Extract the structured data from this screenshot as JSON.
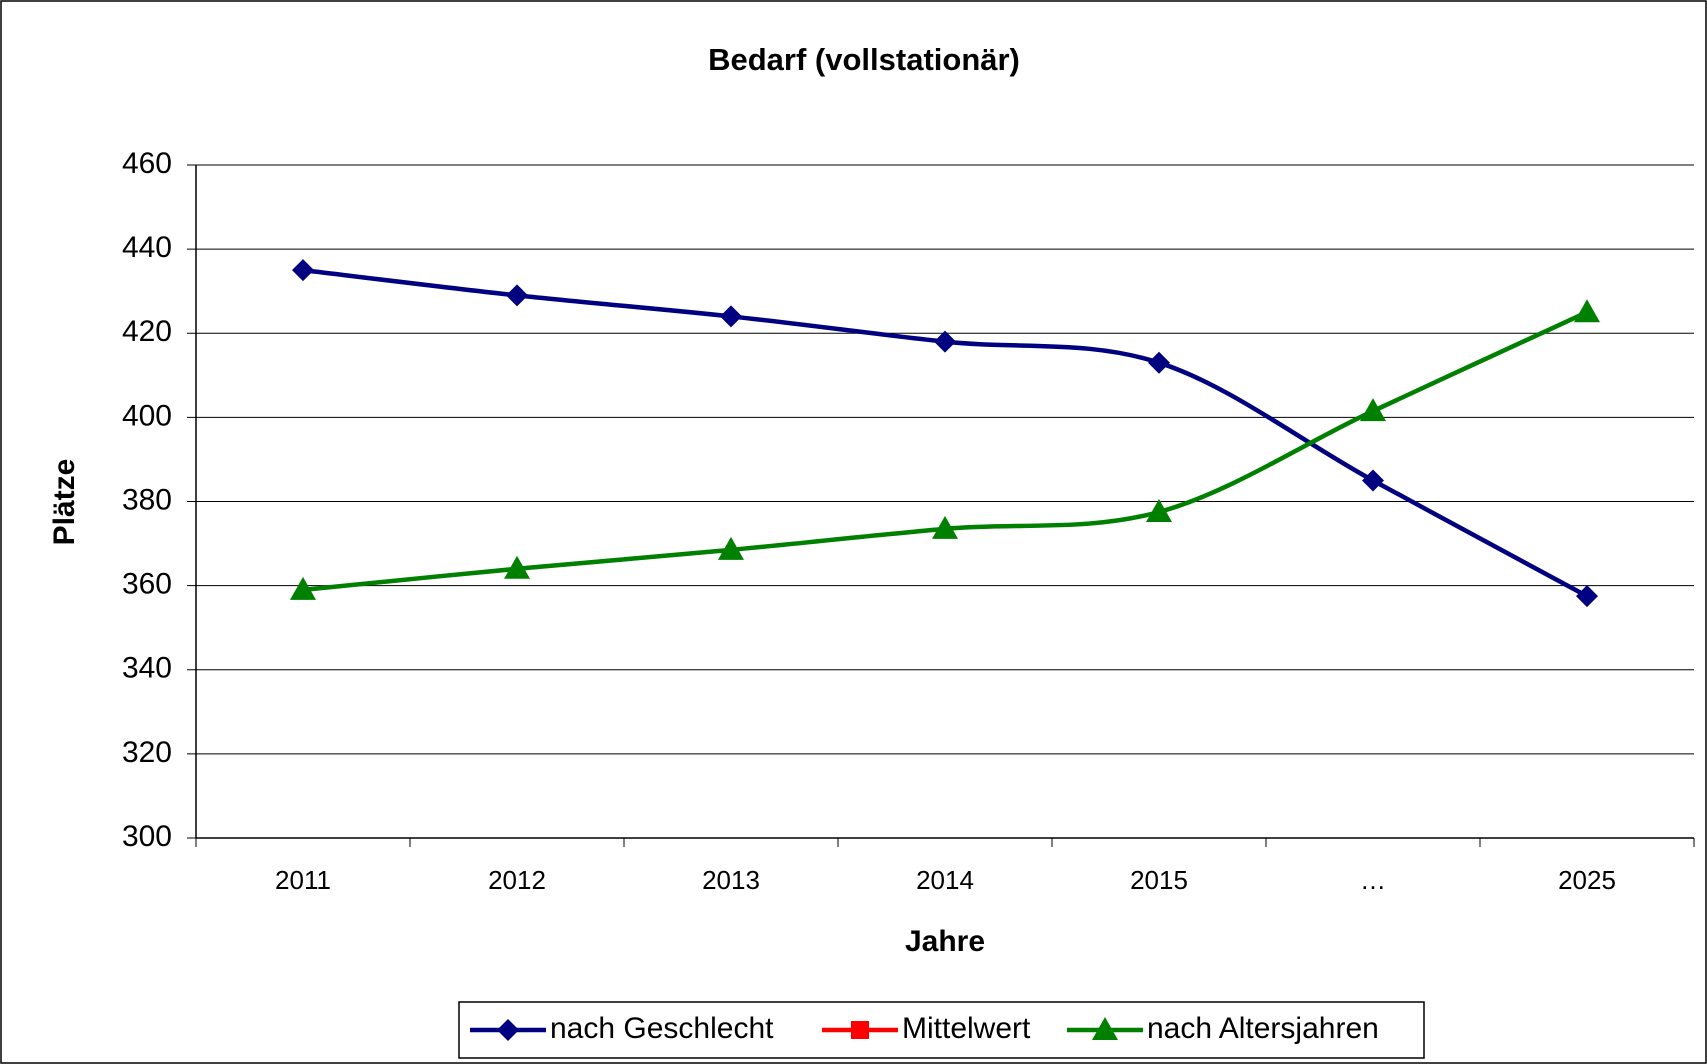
{
  "chart_data": {
    "type": "line",
    "title": "Bedarf (vollstationär)",
    "x_label": "Jahre",
    "y_label": "Plätze",
    "categories": [
      "2011",
      "2012",
      "2013",
      "2014",
      "2015",
      "…",
      "2025"
    ],
    "series": [
      {
        "name": "nach Geschlecht",
        "color": "#000080",
        "marker": "diamond",
        "values": [
          435,
          429,
          424,
          418,
          413,
          385,
          357.5
        ]
      },
      {
        "name": "Mittelwert",
        "color": "#ff0000",
        "marker": "square",
        "values": [
          null,
          null,
          null,
          null,
          null,
          null,
          null
        ]
      },
      {
        "name": "nach Altersjahren",
        "color": "#008000",
        "marker": "triangle",
        "values": [
          359,
          364,
          368.5,
          373.5,
          377.5,
          401.5,
          425
        ]
      }
    ],
    "ylim": [
      300,
      460
    ],
    "yticks": [
      300,
      320,
      340,
      360,
      380,
      400,
      420,
      440,
      460
    ],
    "grid": true,
    "legend": "bottom",
    "smooth": true
  }
}
